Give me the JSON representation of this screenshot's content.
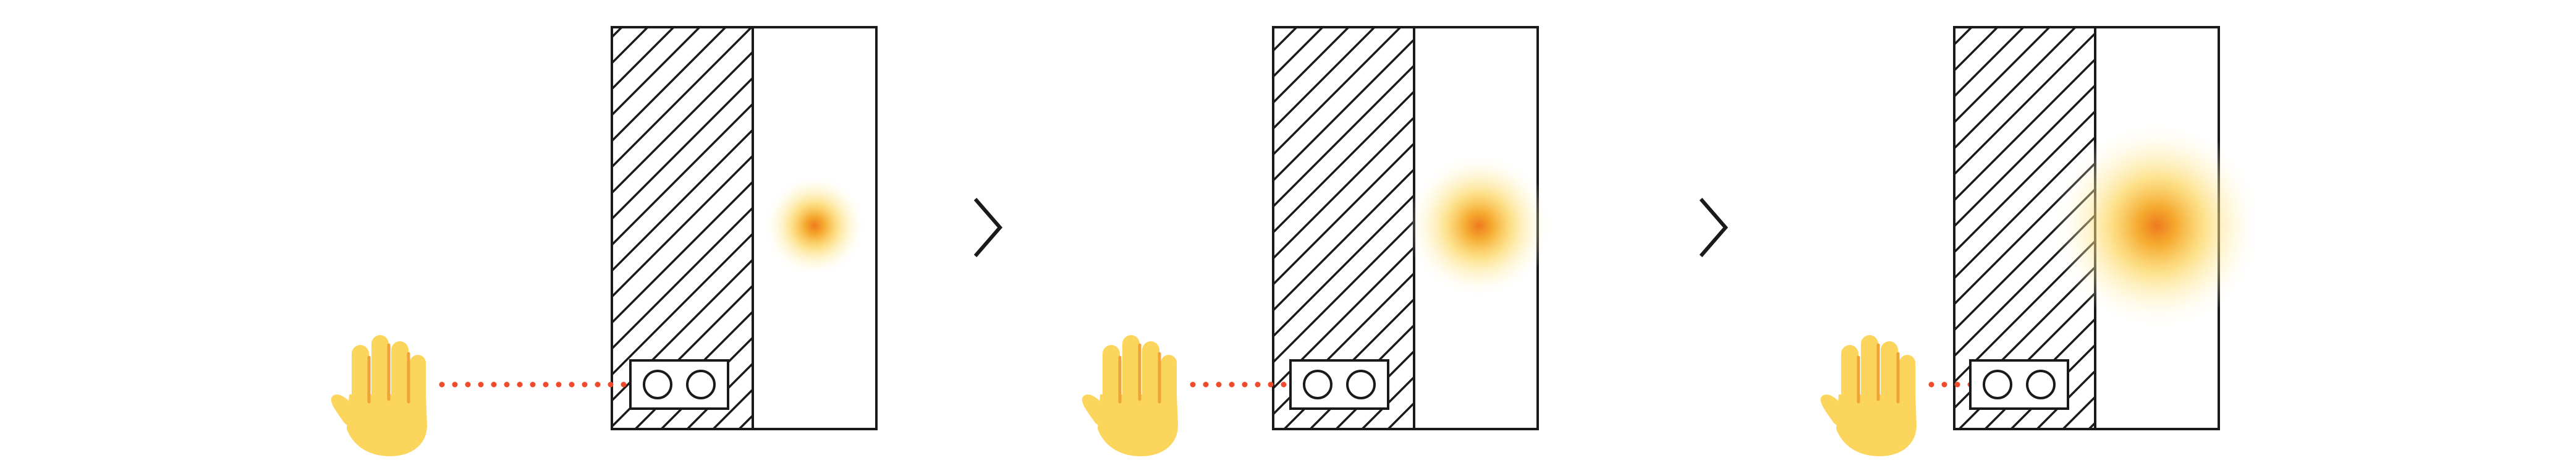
{
  "diagram": {
    "stages": [
      {
        "glow_intensity": 0.33
      },
      {
        "glow_intensity": 0.6
      },
      {
        "glow_intensity": 1.0
      }
    ],
    "connectors": [
      "chevron-right-icon",
      "chevron-right-icon"
    ],
    "colors": {
      "outline": "#1a1a1a",
      "hatch": "#1a1a1a",
      "beam": "#ee4a2c",
      "glow_core": "#f39a1e",
      "glow_mid": "#fbd25a",
      "glow_outer": "#fff4c4",
      "hand_fill": "#fcd55c",
      "hand_lines": "#f0a437",
      "background": "#ffffff"
    }
  }
}
